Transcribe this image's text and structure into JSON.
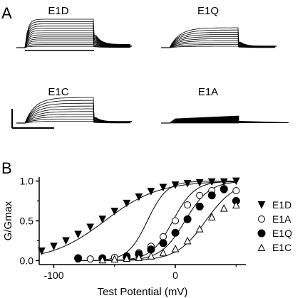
{
  "panel_a": {
    "letter": "A",
    "traces": [
      {
        "name": "E1D"
      },
      {
        "name": "E1Q"
      },
      {
        "name": "E1C"
      },
      {
        "name": "E1A"
      }
    ]
  },
  "panel_b": {
    "letter": "B"
  },
  "chart_data": {
    "type": "scatter",
    "title": "",
    "xlabel": "Test Potential (mV)",
    "ylabel": "G/Gmax",
    "xlim": [
      -112,
      58
    ],
    "ylim": [
      -0.05,
      1.05
    ],
    "x_ticks": [
      -100,
      0
    ],
    "x_tick_labels": [
      "-100",
      "0"
    ],
    "y_ticks": [
      0.0,
      0.5,
      1.0
    ],
    "y_tick_labels": [
      "0.0",
      "0.5",
      "1.0"
    ],
    "legend_position": "right",
    "grid": false,
    "series": [
      {
        "name": "E1D",
        "marker": "filled-triangle-down",
        "x": [
          -110,
          -100,
          -90,
          -80,
          -70,
          -60,
          -50,
          -40,
          -30,
          -20,
          -10,
          0,
          10,
          20,
          30,
          40,
          50
        ],
        "y": [
          0.12,
          0.18,
          0.25,
          0.33,
          0.42,
          0.52,
          0.62,
          0.72,
          0.8,
          0.87,
          0.92,
          0.95,
          0.97,
          0.98,
          0.99,
          0.99,
          1.0
        ],
        "fit_v_half": -58,
        "fit_slope": 22
      },
      {
        "name": "E1A",
        "marker": "open-circle",
        "x": [
          -80,
          -70,
          -60,
          -50,
          -40,
          -30,
          -20,
          -10,
          0,
          10,
          20,
          30,
          40,
          50
        ],
        "y": [
          0.02,
          0.02,
          0.03,
          0.04,
          0.06,
          0.1,
          0.18,
          0.3,
          0.5,
          0.7,
          0.82,
          0.88,
          0.89,
          0.88
        ],
        "fit_v_half": -2,
        "fit_slope": 9
      },
      {
        "name": "E1Q",
        "marker": "filled-circle",
        "x": [
          -80,
          -60,
          -40,
          -30,
          -20,
          -10,
          0,
          10,
          20,
          30,
          40,
          50
        ],
        "y": [
          0.03,
          0.03,
          0.05,
          0.08,
          0.14,
          0.22,
          0.35,
          0.52,
          0.68,
          0.82,
          0.9,
          0.75
        ],
        "fit_v_half": 8,
        "fit_slope": 10
      },
      {
        "name": "E1C",
        "marker": "open-triangle-up",
        "x": [
          -60,
          -50,
          -40,
          -30,
          -20,
          -10,
          0,
          10,
          20,
          30,
          40,
          50
        ],
        "y": [
          0.01,
          0.02,
          0.03,
          0.04,
          0.06,
          0.1,
          0.15,
          0.25,
          0.4,
          0.55,
          0.66,
          0.7
        ],
        "fit_v_half": 25,
        "fit_slope": 12
      }
    ],
    "extra_fit": {
      "fit_v_half": -23,
      "fit_slope": 8
    }
  }
}
